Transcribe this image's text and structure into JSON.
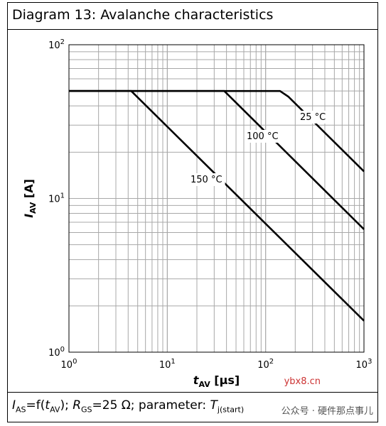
{
  "title": "Diagram 13: Avalanche characteristics",
  "caption": {
    "ias": "I",
    "ias_sub": "AS",
    "mid1": "=f(",
    "tav": "t",
    "tav_sub": "AV",
    "mid2": "); ",
    "rgs": "R",
    "rgs_sub": "GS",
    "mid3": "=25 Ω; parameter: ",
    "tj": "T",
    "tj_sub": "j(start)"
  },
  "watermark": {
    "site": "ybx8.cn",
    "text": "公众号 · 硬件那点事儿"
  },
  "chart_data": {
    "type": "line",
    "xscale": "log",
    "yscale": "log",
    "xlim": [
      1,
      1000
    ],
    "ylim": [
      1,
      100
    ],
    "x_ticks": [
      {
        "base": "10",
        "exp": "0",
        "value": 1
      },
      {
        "base": "10",
        "exp": "1",
        "value": 10
      },
      {
        "base": "10",
        "exp": "2",
        "value": 100
      },
      {
        "base": "10",
        "exp": "3",
        "value": 1000
      }
    ],
    "y_ticks": [
      {
        "base": "10",
        "exp": "0",
        "value": 1
      },
      {
        "base": "10",
        "exp": "1",
        "value": 10
      },
      {
        "base": "10",
        "exp": "2",
        "value": 100
      }
    ],
    "xlabel": {
      "main": "t",
      "sub": "AV",
      "unit": " [µs]"
    },
    "ylabel": {
      "main": "I",
      "sub": "AV",
      "unit": " [A]"
    },
    "grid": true,
    "series": [
      {
        "name": "25 °C",
        "points": [
          [
            1,
            50
          ],
          [
            140,
            50
          ],
          [
            170,
            46
          ],
          [
            1000,
            15
          ]
        ]
      },
      {
        "name": "100 °C",
        "points": [
          [
            1,
            50
          ],
          [
            38,
            50
          ],
          [
            1000,
            6.3
          ]
        ]
      },
      {
        "name": "150 °C",
        "points": [
          [
            1,
            50
          ],
          [
            4.3,
            50
          ],
          [
            1000,
            1.6
          ]
        ]
      }
    ]
  }
}
